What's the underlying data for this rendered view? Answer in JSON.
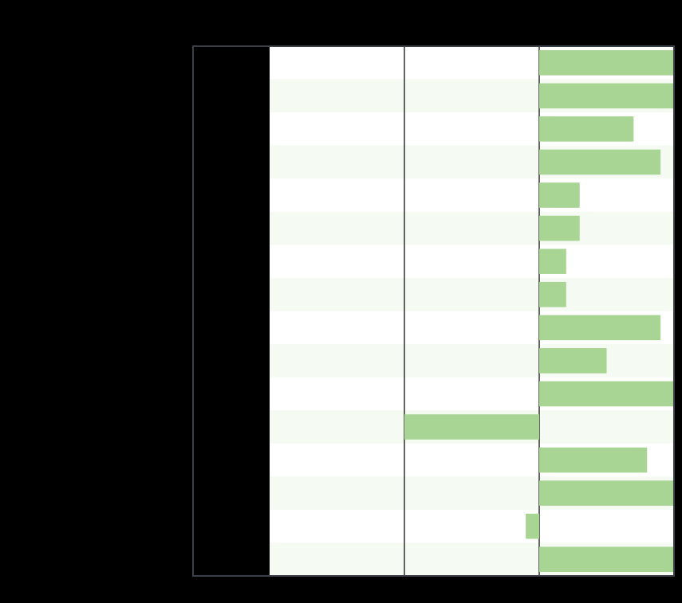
{
  "chart_data": {
    "type": "bar",
    "orientation": "horizontal",
    "title": "",
    "xlabel": "",
    "ylabel": "",
    "categories": [
      "",
      "",
      "",
      "",
      "",
      "",
      "",
      "",
      "",
      "",
      "",
      "",
      "",
      "",
      "",
      ""
    ],
    "values": [
      5,
      5,
      3.5,
      4.5,
      1.5,
      1.5,
      1,
      1,
      4.5,
      2.5,
      5,
      -5,
      4,
      5,
      -0.5,
      5
    ],
    "xlim": [
      -10,
      5
    ],
    "grid": true,
    "legend": "none",
    "colors": {
      "background": "#000000",
      "plot_background": "#ffffff",
      "band": "#f5faf3",
      "bar": "#a8d594",
      "grid": "#000000",
      "frame": "#3b3f46"
    }
  }
}
